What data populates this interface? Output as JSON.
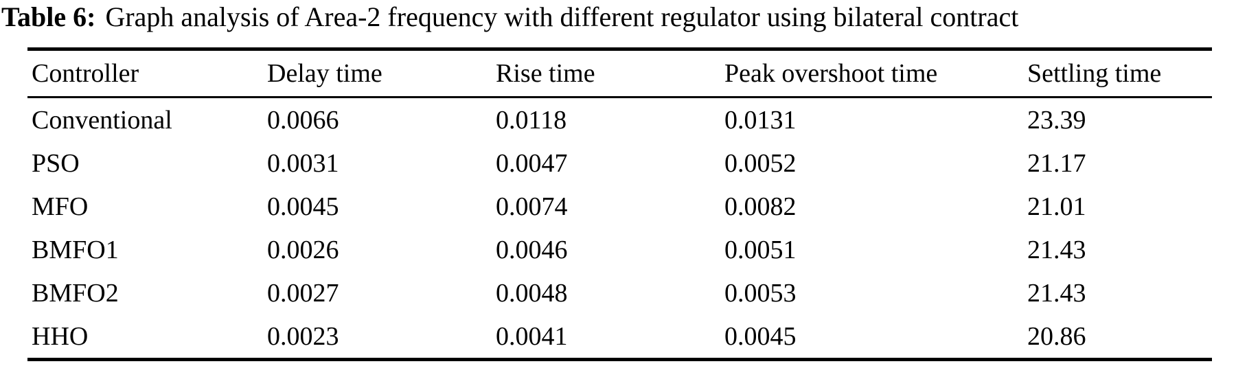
{
  "caption": {
    "label": "Table 6:",
    "text": "Graph analysis of Area-2 frequency with different regulator using bilateral contract"
  },
  "table": {
    "headers": [
      "Controller",
      "Delay time",
      "Rise time",
      "Peak overshoot time",
      "Settling time"
    ],
    "rows": [
      [
        "Conventional",
        "0.0066",
        "0.0118",
        "0.0131",
        "23.39"
      ],
      [
        "PSO",
        "0.0031",
        "0.0047",
        "0.0052",
        "21.17"
      ],
      [
        "MFO",
        "0.0045",
        "0.0074",
        "0.0082",
        "21.01"
      ],
      [
        "BMFO1",
        "0.0026",
        "0.0046",
        "0.0051",
        "21.43"
      ],
      [
        "BMFO2",
        "0.0027",
        "0.0048",
        "0.0053",
        "21.43"
      ],
      [
        "HHO",
        "0.0023",
        "0.0041",
        "0.0045",
        "20.86"
      ]
    ]
  },
  "chart_data": {
    "type": "table",
    "title": "Table 6: Graph analysis of Area-2 frequency with different regulator using bilateral contract",
    "columns": [
      "Controller",
      "Delay time",
      "Rise time",
      "Peak overshoot time",
      "Settling time"
    ],
    "rows": [
      {
        "controller": "Conventional",
        "delay_time": 0.0066,
        "rise_time": 0.0118,
        "peak_overshoot_time": 0.0131,
        "settling_time": 23.39
      },
      {
        "controller": "PSO",
        "delay_time": 0.0031,
        "rise_time": 0.0047,
        "peak_overshoot_time": 0.0052,
        "settling_time": 21.17
      },
      {
        "controller": "MFO",
        "delay_time": 0.0045,
        "rise_time": 0.0074,
        "peak_overshoot_time": 0.0082,
        "settling_time": 21.01
      },
      {
        "controller": "BMFO1",
        "delay_time": 0.0026,
        "rise_time": 0.0046,
        "peak_overshoot_time": 0.0051,
        "settling_time": 21.43
      },
      {
        "controller": "BMFO2",
        "delay_time": 0.0027,
        "rise_time": 0.0048,
        "peak_overshoot_time": 0.0053,
        "settling_time": 21.43
      },
      {
        "controller": "HHO",
        "delay_time": 0.0023,
        "rise_time": 0.0041,
        "peak_overshoot_time": 0.0045,
        "settling_time": 20.86
      }
    ]
  }
}
